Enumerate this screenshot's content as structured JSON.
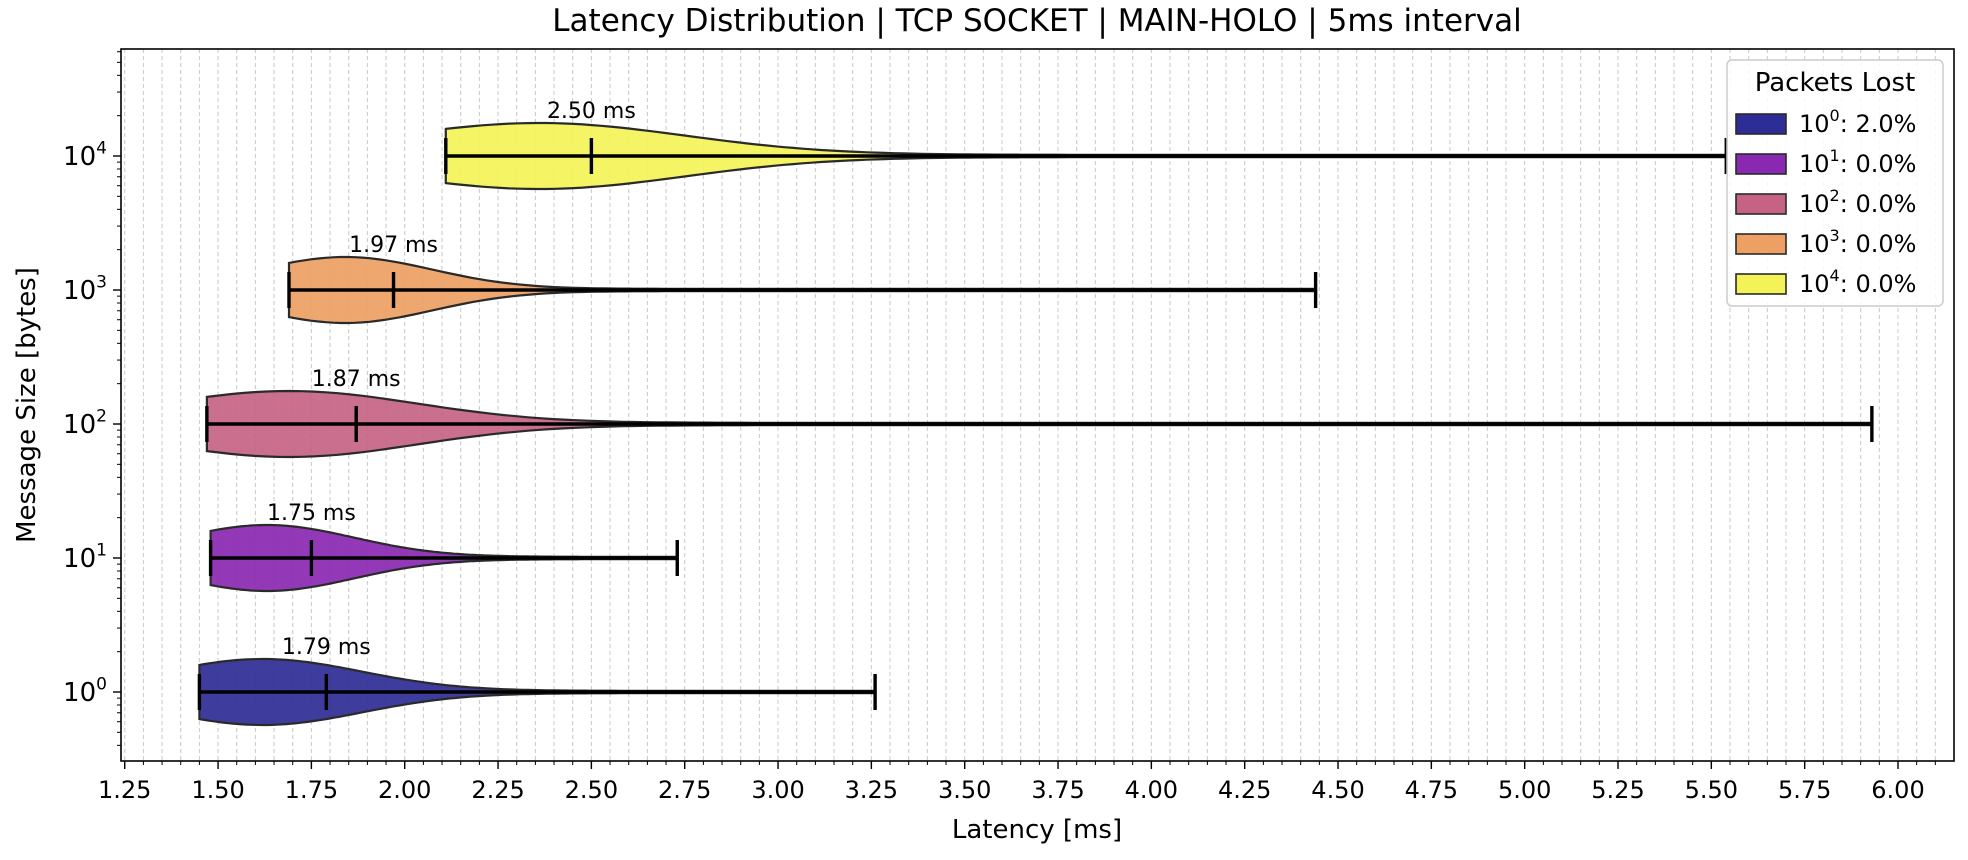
{
  "chart_data": {
    "type": "violin",
    "title": "Latency Distribution | TCP SOCKET | MAIN-HOLO | 5ms interval",
    "xlabel": "Latency [ms]",
    "ylabel": "Message Size [bytes]",
    "xlim": [
      1.24,
      6.15
    ],
    "x_ticks": [
      "1.25",
      "1.50",
      "1.75",
      "2.00",
      "2.25",
      "2.50",
      "2.75",
      "3.00",
      "3.25",
      "3.50",
      "3.75",
      "4.00",
      "4.25",
      "4.50",
      "4.75",
      "5.00",
      "5.25",
      "5.50",
      "5.75",
      "6.00"
    ],
    "y_scale": "log",
    "y_ticks": [
      {
        "base": "10",
        "exp": "0"
      },
      {
        "base": "10",
        "exp": "1"
      },
      {
        "base": "10",
        "exp": "2"
      },
      {
        "base": "10",
        "exp": "3"
      },
      {
        "base": "10",
        "exp": "4"
      }
    ],
    "grid": "vertical dashed",
    "legend": {
      "title": "Packets Lost",
      "placement": "top-right",
      "entries": [
        {
          "base": "10",
          "exp": "0",
          "text": ": 2.0%",
          "color": "#2e2c96"
        },
        {
          "base": "10",
          "exp": "1",
          "text": ": 0.0%",
          "color": "#8a28b2"
        },
        {
          "base": "10",
          "exp": "2",
          "text": ": 0.0%",
          "color": "#c66384"
        },
        {
          "base": "10",
          "exp": "3",
          "text": ": 0.0%",
          "color": "#eea064"
        },
        {
          "base": "10",
          "exp": "4",
          "text": ": 0.0%",
          "color": "#f3f357"
        }
      ]
    },
    "series": [
      {
        "size": 1,
        "min": 1.45,
        "median": 1.79,
        "max": 3.26,
        "mode": 1.62,
        "median_label": "1.79 ms",
        "color": "#2e2c96"
      },
      {
        "size": 10,
        "min": 1.48,
        "median": 1.75,
        "max": 2.73,
        "mode": 1.63,
        "median_label": "1.75 ms",
        "color": "#8a28b2"
      },
      {
        "size": 100,
        "min": 1.47,
        "median": 1.87,
        "max": 5.93,
        "mode": 1.69,
        "median_label": "1.87 ms",
        "color": "#c66384"
      },
      {
        "size": 1000,
        "min": 1.69,
        "median": 1.97,
        "max": 4.44,
        "mode": 1.84,
        "median_label": "1.97 ms",
        "color": "#eea064"
      },
      {
        "size": 10000,
        "min": 2.11,
        "median": 2.5,
        "max": 5.54,
        "mode": 2.36,
        "median_label": "2.50 ms",
        "color": "#f3f357"
      }
    ]
  }
}
